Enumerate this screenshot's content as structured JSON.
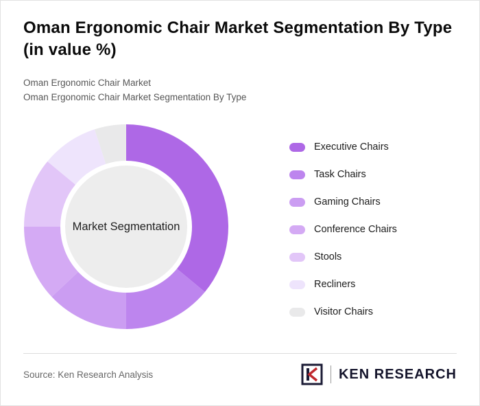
{
  "chart_data": {
    "type": "pie",
    "donut": true,
    "title": "Oman Ergonomic Chair Market Segmentation By Type (in value %)",
    "subtitle_lines": [
      "Oman Ergonomic Chair Market",
      "Oman Ergonomic Chair Market Segmentation By Type"
    ],
    "categories": [
      "Executive Chairs",
      "Task Chairs",
      "Gaming Chairs",
      "Conference Chairs",
      "Stools",
      "Recliners",
      "Visitor Chairs"
    ],
    "values": [
      36,
      14,
      13,
      12,
      11,
      9,
      5
    ],
    "colors": [
      "#ae68e6",
      "#bd85ee",
      "#cb9df2",
      "#d4aaf4",
      "#e2c6f8",
      "#eee4fc",
      "#e9e9ea"
    ],
    "center_label": "Market Segmentation",
    "center_color": "#ededed",
    "legend_position": "right",
    "start_angle": 0
  },
  "footer": {
    "source": "Source: Ken Research Analysis",
    "brand": "KEN RESEARCH"
  }
}
